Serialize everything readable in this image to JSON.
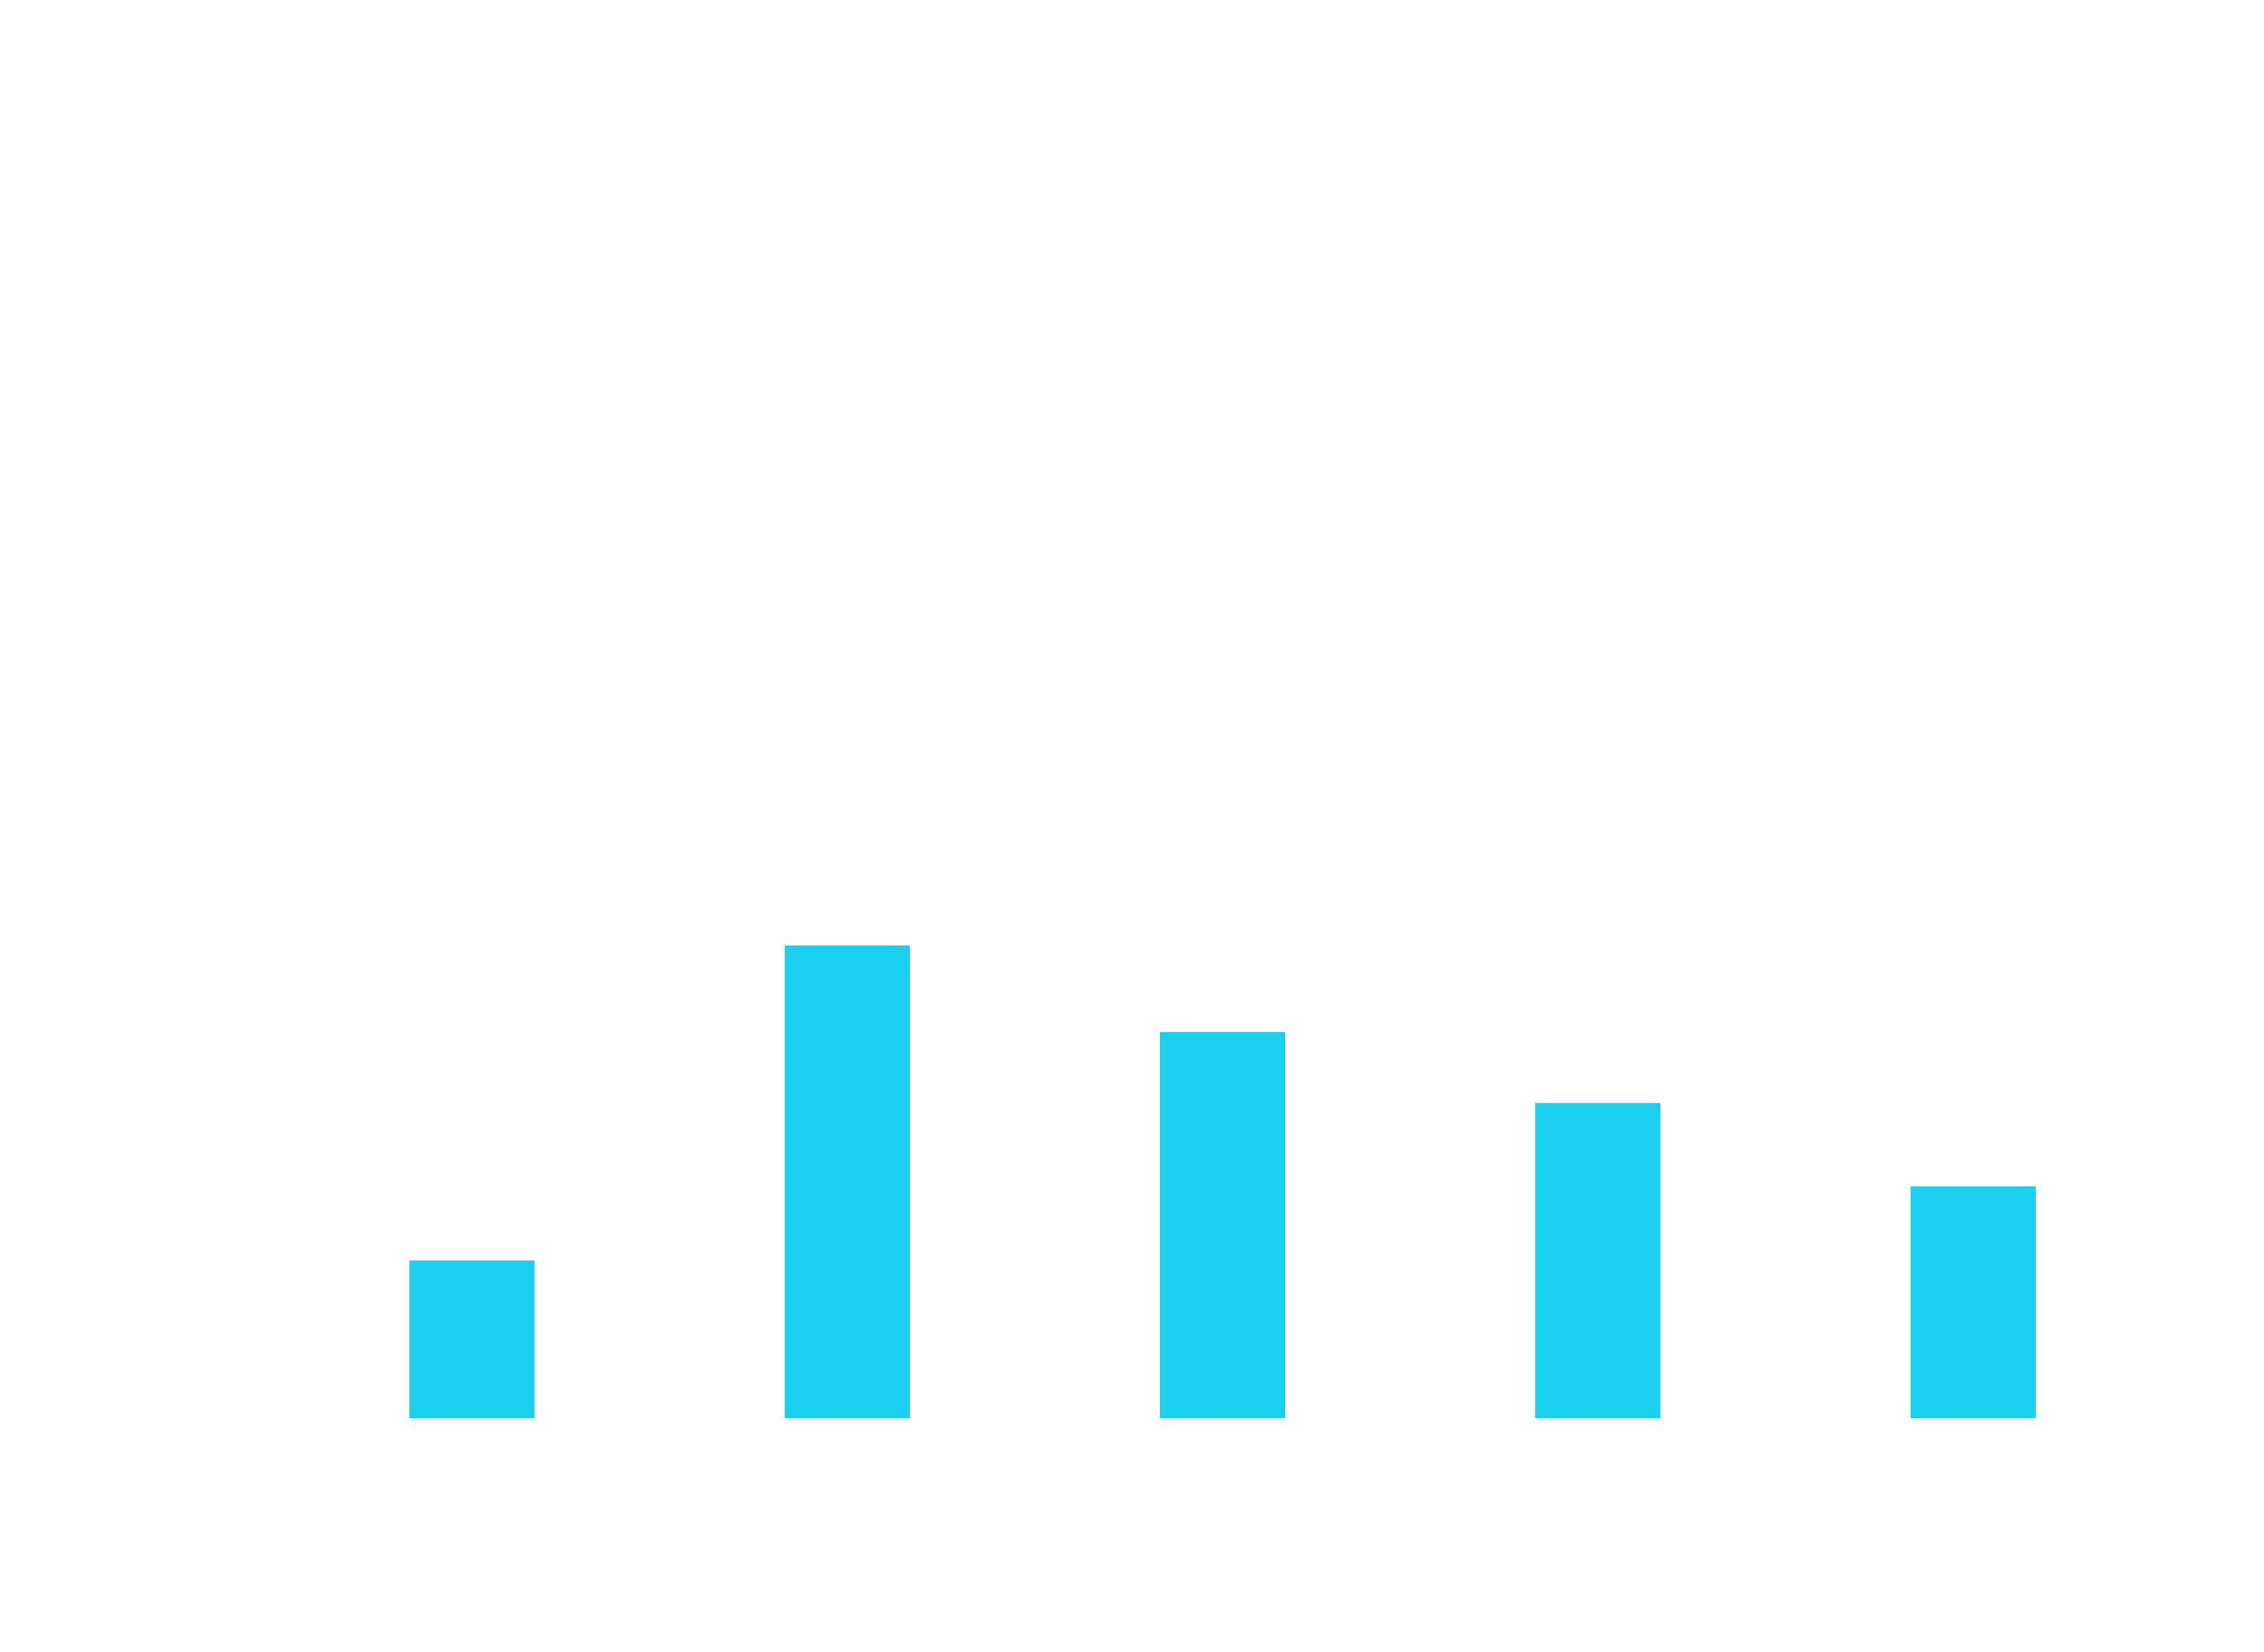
{
  "chart_data": {
    "type": "bar",
    "categories": [
      "",
      "",
      "",
      "",
      ""
    ],
    "values": [
      1.0,
      3.0,
      2.45,
      2.0,
      1.47
    ],
    "title": "",
    "xlabel": "",
    "ylabel": "",
    "ylim": [
      0,
      6.5
    ],
    "grid": false,
    "legend": "none",
    "bar_color": "#1ad0ee",
    "background": "#ffffff"
  }
}
